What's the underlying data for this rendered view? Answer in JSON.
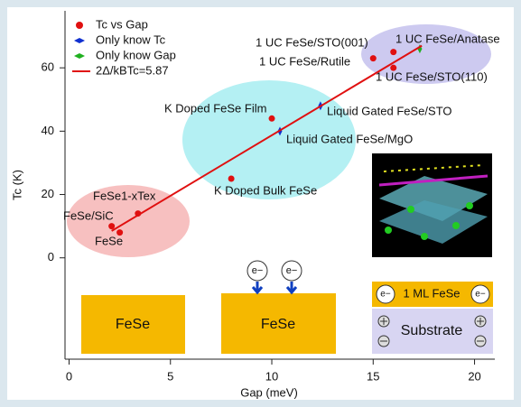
{
  "chart_data": {
    "type": "scatter",
    "x_label": "Gap (meV)",
    "y_label": "Tc (K)",
    "xlim": [
      -0.2,
      21
    ],
    "ylim": [
      -32,
      78
    ],
    "xticks": [
      0,
      5,
      10,
      15,
      20
    ],
    "yticks": [
      0,
      20,
      40,
      60
    ],
    "legend": "upper left",
    "series": [
      {
        "name": "Tc vs Gap",
        "color": "#e01010",
        "marker": "circle",
        "x": [
          2.1,
          2.5,
          3.4,
          10,
          8,
          15,
          16,
          16
        ],
        "values": [
          10,
          8,
          14,
          44,
          25,
          63,
          65,
          60
        ]
      },
      {
        "name": "Only know Tc",
        "color": "#1030d0",
        "marker": "diamond",
        "x": [
          12.4,
          10.4
        ],
        "values": [
          48,
          40
        ]
      },
      {
        "name": "Only know Gap",
        "color": "#20b020",
        "marker": "diamond",
        "x": [
          17.3
        ],
        "values": [
          66
        ]
      },
      {
        "name": "2Δ/kBTc=5.87",
        "color": "#e01010",
        "marker": "line",
        "x": [
          2.1,
          17.4
        ],
        "values": [
          8.5,
          67
        ]
      }
    ],
    "annotations": [
      {
        "text": "FeSe/SiC",
        "color": "#111"
      },
      {
        "text": "FeSe",
        "color": "#111"
      },
      {
        "text": "FeSe1-xTex",
        "color": "#111"
      },
      {
        "text": "K Doped FeSe Film",
        "color": "#111"
      },
      {
        "text": "K Doped Bulk FeSe",
        "color": "#111"
      },
      {
        "text": "1 UC FeSe/Rutile",
        "color": "#e01010"
      },
      {
        "text": "1 UC FeSe/STO(001)",
        "color": "#111"
      },
      {
        "text": "1 UC FeSe/STO(110)",
        "color": "#111"
      },
      {
        "text": "Liquid Gated FeSe/STO",
        "color": "#111"
      },
      {
        "text": "Liquid Gated FeSe/MgO",
        "color": "#111"
      },
      {
        "text": "1 UC FeSe/Anatase",
        "color": "#111"
      }
    ],
    "schematic_labels": [
      "FeSe",
      "FeSe",
      "1 ML FeSe",
      "Substrate"
    ],
    "electron_label": "e−"
  }
}
